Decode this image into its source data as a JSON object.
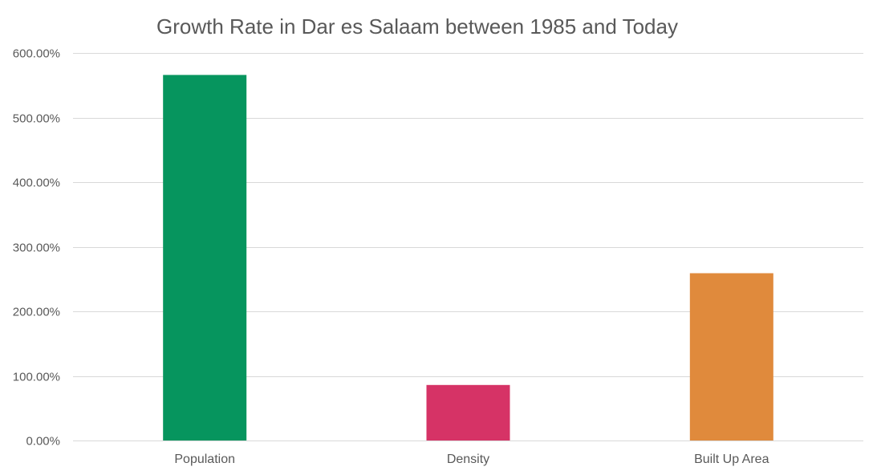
{
  "chart_data": {
    "type": "bar",
    "title": "Growth Rate in Dar es Salaam between 1985 and Today",
    "xlabel": "",
    "ylabel": "",
    "categories": [
      "Population",
      "Density",
      "Built Up Area"
    ],
    "values": [
      5.66,
      0.86,
      2.59
    ],
    "colors": [
      "#06955E",
      "#D63366",
      "#E08A3C"
    ],
    "ylim": [
      0,
      6
    ],
    "yticks": [
      0,
      1,
      2,
      3,
      4,
      5,
      6
    ],
    "ytick_labels": [
      "0.00%",
      "100.00%",
      "200.00%",
      "300.00%",
      "400.00%",
      "500.00%",
      "600.00%"
    ],
    "value_format": "percent",
    "grid": true,
    "legend": "none"
  }
}
